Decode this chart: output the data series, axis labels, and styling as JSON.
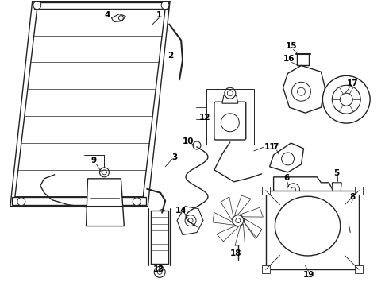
{
  "bg_color": "#ffffff",
  "line_color": "#222222",
  "label_color": "#000000",
  "fig_w": 4.9,
  "fig_h": 3.6,
  "dpi": 100
}
